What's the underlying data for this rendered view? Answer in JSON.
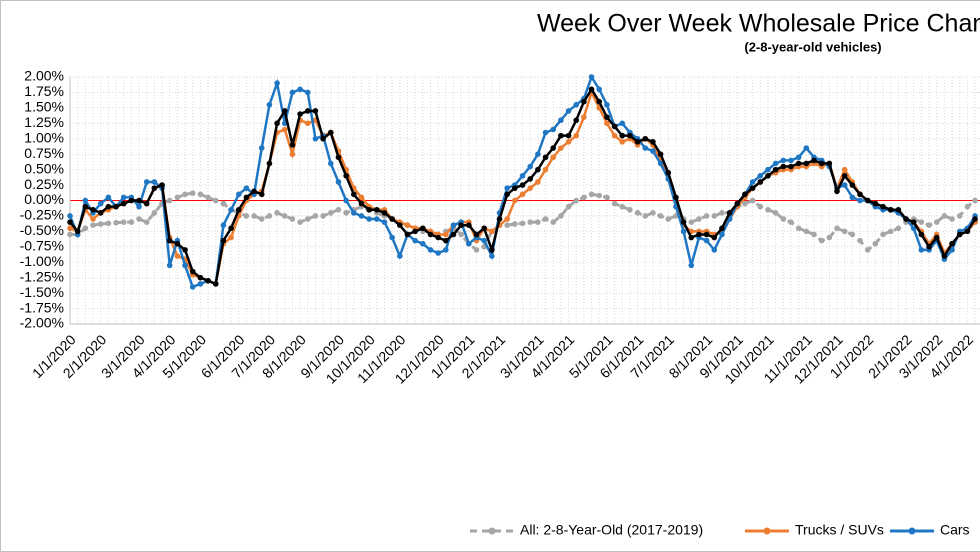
{
  "chart_data": {
    "type": "line",
    "title": "Week Over Week Wholesale Price Changes",
    "subtitle": "(2-8-year-old vehicles)",
    "categories": [
      "1/1/2020",
      null,
      null,
      null,
      "2/1/2020",
      null,
      null,
      null,
      null,
      "3/1/2020",
      null,
      null,
      null,
      "4/1/2020",
      null,
      null,
      null,
      "5/1/2020",
      null,
      null,
      null,
      null,
      "6/1/2020",
      null,
      null,
      null,
      "7/1/2020",
      null,
      null,
      null,
      "8/1/2020",
      null,
      null,
      null,
      null,
      "9/1/2020",
      null,
      null,
      null,
      "10/1/2020",
      null,
      null,
      null,
      "11/1/2020",
      null,
      null,
      null,
      null,
      "12/1/2020",
      null,
      null,
      null,
      "1/1/2021",
      null,
      null,
      null,
      "2/1/2021",
      null,
      null,
      null,
      null,
      "3/1/2021",
      null,
      null,
      null,
      "4/1/2021",
      null,
      null,
      null,
      null,
      "5/1/2021",
      null,
      null,
      null,
      "6/1/2021",
      null,
      null,
      null,
      "7/1/2021",
      null,
      null,
      null,
      null,
      "8/1/2021",
      null,
      null,
      null,
      "9/1/2021",
      null,
      null,
      null,
      "10/1/2021",
      null,
      null,
      null,
      null,
      "11/1/2021",
      null,
      null,
      null,
      "12/1/2021",
      null,
      null,
      null,
      "1/1/2022",
      null,
      null,
      null,
      null,
      "2/1/2022",
      null,
      null,
      null,
      "3/1/2022",
      null,
      null,
      null,
      "4/1/2022",
      null
    ],
    "series": [
      {
        "name": "All: 2-8-Year-Old (2017-2019)",
        "color": "#a6a6a6",
        "dashed": true,
        "values": [
          -0.55,
          -0.55,
          -0.45,
          -0.4,
          -0.38,
          -0.37,
          -0.36,
          -0.35,
          -0.35,
          -0.3,
          -0.35,
          -0.2,
          -0.05,
          0.0,
          0.05,
          0.1,
          0.12,
          0.1,
          0.05,
          0.0,
          -0.05,
          -0.15,
          -0.2,
          -0.25,
          -0.25,
          -0.3,
          -0.25,
          -0.2,
          -0.25,
          -0.3,
          -0.35,
          -0.3,
          -0.25,
          -0.25,
          -0.2,
          -0.15,
          -0.2,
          -0.15,
          -0.1,
          -0.15,
          -0.2,
          -0.25,
          -0.3,
          -0.35,
          -0.4,
          -0.45,
          -0.5,
          -0.5,
          -0.55,
          -0.5,
          -0.45,
          -0.55,
          -0.7,
          -0.8,
          -0.75,
          -0.5,
          -0.4,
          -0.4,
          -0.38,
          -0.37,
          -0.35,
          -0.35,
          -0.3,
          -0.35,
          -0.25,
          -0.1,
          0.0,
          0.05,
          0.1,
          0.08,
          0.05,
          -0.05,
          -0.1,
          -0.15,
          -0.2,
          -0.25,
          -0.2,
          -0.25,
          -0.3,
          -0.25,
          -0.3,
          -0.35,
          -0.3,
          -0.25,
          -0.25,
          -0.2,
          -0.2,
          -0.1,
          -0.05,
          0.0,
          -0.1,
          -0.15,
          -0.2,
          -0.3,
          -0.35,
          -0.45,
          -0.5,
          -0.55,
          -0.65,
          -0.6,
          -0.45,
          -0.5,
          -0.55,
          -0.65,
          -0.8,
          -0.7,
          -0.55,
          -0.5,
          -0.45,
          -0.35,
          -0.3,
          -0.35,
          -0.4,
          -0.35,
          -0.25,
          -0.3,
          -0.25,
          -0.1,
          0.0
        ]
      },
      {
        "name": "Trucks / SUVs",
        "color": "#ed7d31",
        "values": [
          -0.45,
          -0.5,
          -0.15,
          -0.3,
          -0.2,
          -0.15,
          -0.1,
          -0.05,
          0.0,
          0.0,
          -0.05,
          0.2,
          0.25,
          -0.6,
          -0.9,
          -0.95,
          -1.2,
          -1.25,
          -1.3,
          -1.35,
          -0.7,
          -0.6,
          -0.25,
          0.0,
          0.1,
          0.15,
          0.6,
          1.1,
          1.15,
          0.75,
          1.3,
          1.25,
          1.3,
          1.05,
          1.1,
          0.8,
          0.5,
          0.2,
          0.05,
          -0.1,
          -0.15,
          -0.15,
          -0.3,
          -0.35,
          -0.4,
          -0.45,
          -0.45,
          -0.5,
          -0.55,
          -0.55,
          -0.4,
          -0.35,
          -0.35,
          -0.65,
          -0.45,
          -0.5,
          -0.4,
          -0.3,
          0.0,
          0.1,
          0.2,
          0.3,
          0.5,
          0.7,
          0.85,
          0.95,
          1.05,
          1.35,
          1.75,
          1.5,
          1.25,
          1.05,
          0.95,
          1.0,
          0.9,
          1.0,
          0.9,
          0.65,
          0.35,
          0.0,
          -0.4,
          -0.5,
          -0.5,
          -0.5,
          -0.55,
          -0.5,
          -0.3,
          -0.1,
          0.05,
          0.2,
          0.3,
          0.4,
          0.45,
          0.5,
          0.5,
          0.55,
          0.55,
          0.6,
          0.55,
          0.6,
          0.2,
          0.5,
          0.3,
          0.1,
          0.0,
          -0.05,
          -0.1,
          -0.15,
          -0.2,
          -0.3,
          -0.35,
          -0.5,
          -0.7,
          -0.55,
          -0.85,
          -0.7,
          -0.55,
          -0.5,
          -0.35
        ]
      },
      {
        "name": "Cars",
        "color": "#1f77c4",
        "values": [
          -0.25,
          -0.55,
          0.0,
          -0.2,
          -0.05,
          0.05,
          -0.1,
          0.05,
          0.05,
          -0.1,
          0.3,
          0.3,
          0.2,
          -1.05,
          -0.65,
          -1.05,
          -1.4,
          -1.35,
          -1.3,
          -1.35,
          -0.4,
          -0.15,
          0.1,
          0.2,
          0.1,
          0.85,
          1.55,
          1.9,
          1.25,
          1.75,
          1.8,
          1.75,
          1.0,
          1.05,
          0.6,
          0.3,
          0.0,
          -0.2,
          -0.25,
          -0.3,
          -0.3,
          -0.35,
          -0.6,
          -0.9,
          -0.55,
          -0.65,
          -0.7,
          -0.8,
          -0.85,
          -0.8,
          -0.4,
          -0.35,
          -0.7,
          -0.6,
          -0.65,
          -0.9,
          -0.2,
          0.2,
          0.25,
          0.4,
          0.55,
          0.75,
          1.1,
          1.15,
          1.3,
          1.45,
          1.55,
          1.65,
          2.0,
          1.8,
          1.55,
          1.2,
          1.25,
          1.1,
          1.0,
          0.85,
          0.8,
          0.6,
          0.35,
          -0.1,
          -0.5,
          -1.05,
          -0.6,
          -0.65,
          -0.8,
          -0.55,
          -0.3,
          -0.05,
          0.1,
          0.3,
          0.4,
          0.5,
          0.6,
          0.65,
          0.65,
          0.7,
          0.85,
          0.7,
          0.65,
          0.55,
          0.2,
          0.25,
          0.05,
          0.0,
          0.0,
          -0.1,
          -0.15,
          -0.15,
          -0.2,
          -0.3,
          -0.45,
          -0.8,
          -0.8,
          -0.65,
          -0.95,
          -0.8,
          -0.5,
          -0.45,
          -0.25
        ]
      },
      {
        "color": "#000000",
        "values": [
          -0.35,
          -0.5,
          -0.1,
          -0.15,
          -0.2,
          -0.1,
          -0.1,
          -0.05,
          0.0,
          0.0,
          -0.05,
          0.2,
          0.25,
          -0.65,
          -0.7,
          -0.8,
          -1.15,
          -1.25,
          -1.3,
          -1.35,
          -0.65,
          -0.45,
          -0.15,
          0.05,
          0.15,
          0.1,
          0.6,
          1.25,
          1.45,
          0.9,
          1.4,
          1.45,
          1.45,
          1.0,
          1.1,
          0.7,
          0.4,
          0.1,
          -0.05,
          -0.15,
          -0.15,
          -0.2,
          -0.3,
          -0.4,
          -0.55,
          -0.5,
          -0.45,
          -0.55,
          -0.6,
          -0.65,
          -0.55,
          -0.4,
          -0.4,
          -0.55,
          -0.45,
          -0.8,
          -0.3,
          0.1,
          0.2,
          0.25,
          0.35,
          0.5,
          0.7,
          0.85,
          1.05,
          1.05,
          1.3,
          1.6,
          1.8,
          1.6,
          1.35,
          1.2,
          1.05,
          1.05,
          0.95,
          1.0,
          0.95,
          0.75,
          0.45,
          0.05,
          -0.35,
          -0.6,
          -0.55,
          -0.55,
          -0.6,
          -0.45,
          -0.2,
          -0.05,
          0.1,
          0.2,
          0.3,
          0.4,
          0.5,
          0.55,
          0.55,
          0.6,
          0.6,
          0.65,
          0.6,
          0.6,
          0.15,
          0.4,
          0.25,
          0.1,
          0.0,
          -0.05,
          -0.1,
          -0.15,
          -0.15,
          -0.3,
          -0.35,
          -0.55,
          -0.75,
          -0.6,
          -0.9,
          -0.7,
          -0.55,
          -0.5,
          -0.3
        ]
      }
    ],
    "ylim": [
      -2,
      2
    ],
    "yticks": [
      {
        "value": -2,
        "label": "-2.00%"
      },
      {
        "value": -1.75,
        "label": "-1.75%"
      },
      {
        "value": -1.5,
        "label": "-1.50%"
      },
      {
        "value": -1.25,
        "label": "-1.25%"
      },
      {
        "value": -1,
        "label": "-1.00%"
      },
      {
        "value": -0.75,
        "label": "-0.75%"
      },
      {
        "value": -0.5,
        "label": "-0.50%"
      },
      {
        "value": -0.25,
        "label": "-0.25%"
      },
      {
        "value": 0,
        "label": "0.00%"
      },
      {
        "value": 0.25,
        "label": "0.25%"
      },
      {
        "value": 0.5,
        "label": "0.50%"
      },
      {
        "value": 0.75,
        "label": "0.75%"
      },
      {
        "value": 1,
        "label": "1.00%"
      },
      {
        "value": 1.25,
        "label": "1.25%"
      },
      {
        "value": 1.5,
        "label": "1.50%"
      },
      {
        "value": 1.75,
        "label": "1.75%"
      },
      {
        "value": 2,
        "label": "2.00%"
      }
    ],
    "grid": true,
    "zero_line_color": "#ff0000",
    "legend": "bottom"
  }
}
